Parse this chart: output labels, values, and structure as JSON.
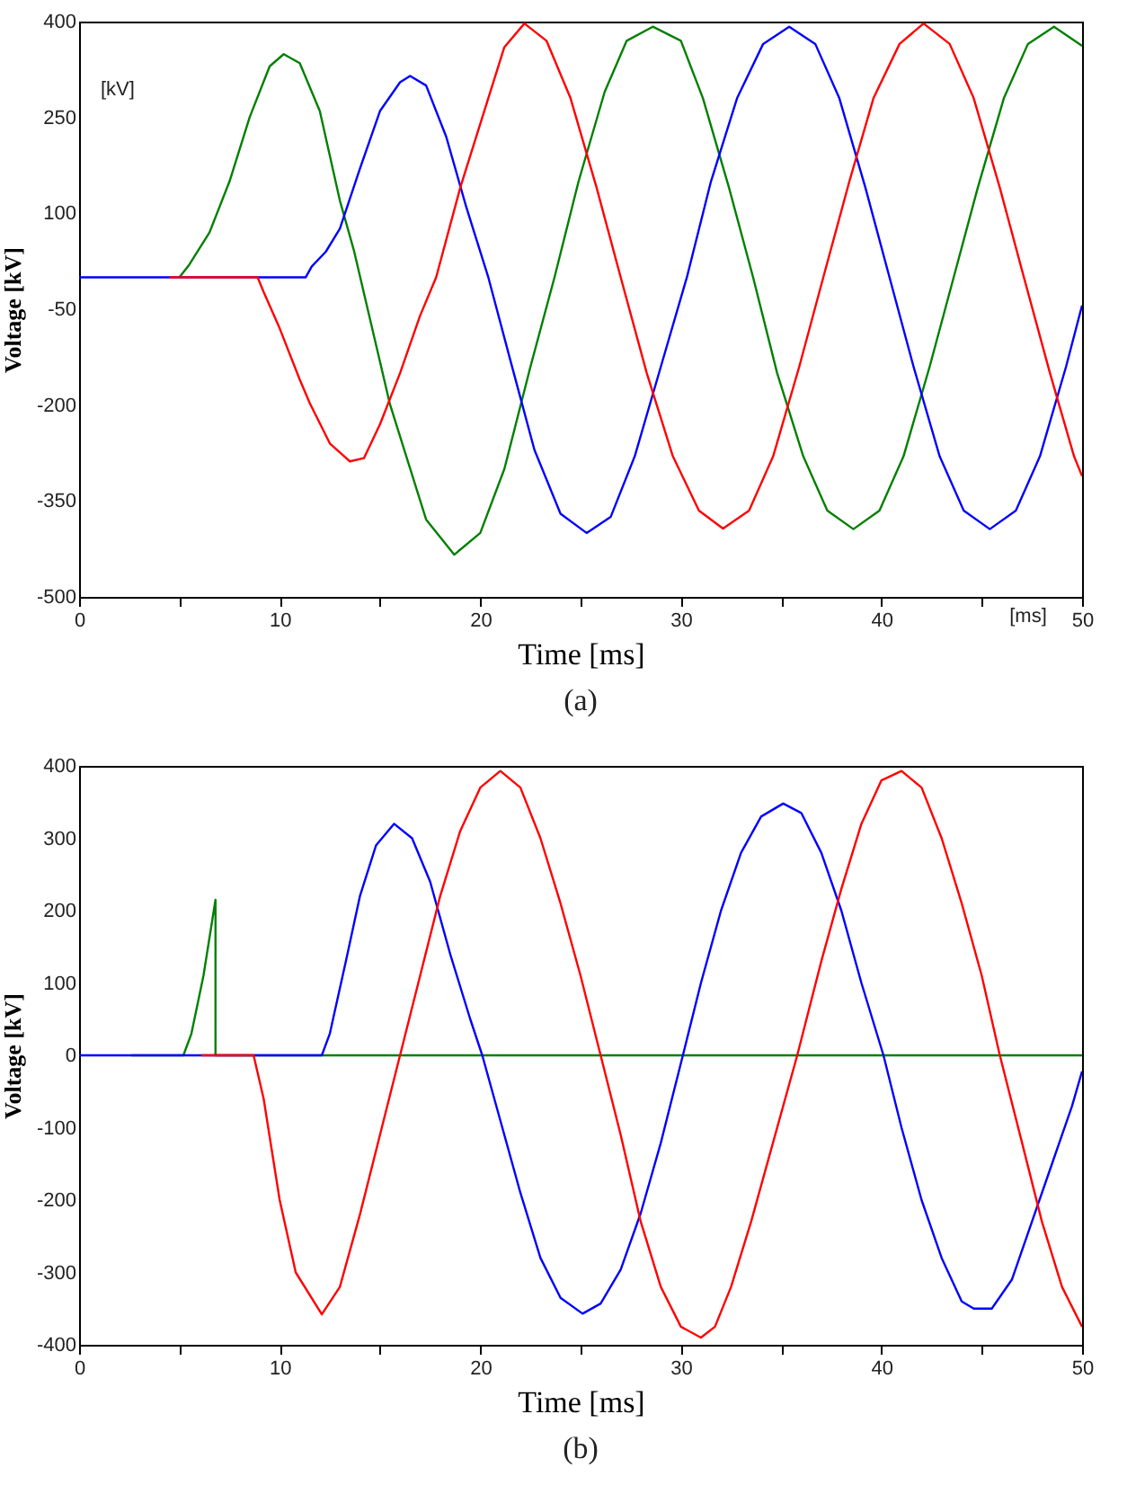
{
  "chart_data": [
    {
      "type": "line",
      "xlabel": "Time [ms]",
      "ylabel": "Voltage [kV]",
      "annotations": [
        "[kV]",
        "[ms]",
        "(a)"
      ],
      "xlim": [
        0,
        50
      ],
      "ylim": [
        -500,
        400
      ],
      "xticks": [
        0,
        {
          "value": 5,
          "label": null
        },
        10,
        {
          "value": 15,
          "label": null
        },
        20,
        {
          "value": 25,
          "label": null
        },
        30,
        {
          "value": 35,
          "label": null
        },
        40,
        {
          "value": 45,
          "label": null
        },
        50
      ],
      "yticks": [
        -500,
        -350,
        -200,
        -50,
        100,
        250,
        400
      ],
      "grid": false,
      "series": [
        {
          "color": "#008000",
          "x": [
            5,
            5.5,
            6.5,
            7.5,
            8.5,
            9.5,
            10.2,
            11,
            12,
            13,
            13.7,
            15.5,
            17.3,
            18.7,
            20,
            21.2,
            22.5,
            23.7,
            24.9,
            26.2,
            27.3,
            28.6,
            30,
            31.1,
            32.4,
            33.6,
            34.8,
            36.1,
            37.3,
            38.6,
            39.9,
            41.1,
            42.4,
            43.6,
            44.8,
            46.1,
            47.3,
            48.6,
            50
          ],
          "values": [
            0,
            20,
            70,
            150,
            250,
            330,
            349,
            335,
            260,
            120,
            42,
            -199,
            -379,
            -434,
            -400,
            -300,
            -140,
            0,
            150,
            290,
            370,
            392,
            370,
            280,
            140,
            0,
            -150,
            -280,
            -365,
            -394,
            -365,
            -280,
            -140,
            0,
            140,
            280,
            365,
            392,
            362
          ]
        },
        {
          "color": "#0000ff",
          "x": [
            0,
            11.3,
            11.6,
            12.3,
            13,
            14,
            15,
            16,
            16.5,
            17.3,
            18.3,
            19.3,
            20.4,
            21.5,
            22.7,
            24,
            25.3,
            26.5,
            27.7,
            29,
            30.3,
            31.5,
            32.8,
            34.1,
            35.4,
            36.7,
            37.9,
            39.2,
            40.4,
            41.6,
            42.9,
            44.1,
            45.4,
            46.7,
            47.9,
            49.2,
            50
          ],
          "values": [
            0,
            0,
            17,
            40,
            76,
            170,
            260,
            305,
            315,
            300,
            220,
            110,
            0,
            -130,
            -270,
            -370,
            -400,
            -375,
            -280,
            -140,
            0,
            150,
            280,
            365,
            392,
            365,
            280,
            140,
            0,
            -140,
            -280,
            -365,
            -394,
            -365,
            -280,
            -140,
            -44
          ]
        },
        {
          "color": "#ff0000",
          "x": [
            4.5,
            8.9,
            9.2,
            10,
            11,
            11.5,
            12.5,
            13.5,
            14.2,
            15,
            16,
            17,
            17.8,
            19,
            20.3,
            21.2,
            22.2,
            23.3,
            24.5,
            25.8,
            27,
            28.3,
            29.6,
            30.9,
            32.1,
            33.4,
            34.6,
            35.9,
            37.1,
            38.4,
            39.6,
            40.9,
            42.1,
            43.4,
            44.6,
            45.9,
            47.1,
            48.4,
            49.6,
            50
          ],
          "values": [
            0,
            0,
            -23,
            -80,
            -160,
            -197,
            -260,
            -288,
            -283,
            -230,
            -150,
            -60,
            0,
            140,
            270,
            360,
            397,
            370,
            280,
            140,
            0,
            -150,
            -280,
            -365,
            -393,
            -365,
            -280,
            -140,
            0,
            150,
            280,
            365,
            397,
            365,
            280,
            140,
            0,
            -150,
            -280,
            -311
          ]
        }
      ]
    },
    {
      "type": "line",
      "xlabel": "Time [ms]",
      "ylabel": "Voltage [kV]",
      "annotations": [
        "(b)"
      ],
      "xlim": [
        0,
        50
      ],
      "ylim": [
        -400,
        400
      ],
      "xticks": [
        0,
        {
          "value": 5,
          "label": null
        },
        10,
        {
          "value": 15,
          "label": null
        },
        20,
        {
          "value": 25,
          "label": null
        },
        30,
        {
          "value": 35,
          "label": null
        },
        40,
        {
          "value": 45,
          "label": null
        },
        50
      ],
      "yticks": [
        -400,
        -300,
        -200,
        -100,
        0,
        100,
        200,
        300,
        400
      ],
      "grid": false,
      "series": [
        {
          "color": "#008000",
          "x": [
            2.6,
            5.2,
            5.6,
            6.2,
            6.8,
            6.8,
            50
          ],
          "values": [
            0,
            0,
            30,
            110,
            215,
            0,
            0
          ]
        },
        {
          "color": "#0000ff",
          "x": [
            0,
            12.1,
            12.5,
            13.3,
            14,
            14.8,
            15.7,
            16.6,
            17.5,
            18.5,
            19.5,
            20.1,
            21,
            22,
            23,
            24,
            25.1,
            26,
            27,
            28,
            29,
            30.1,
            31,
            32,
            33,
            34,
            35.1,
            36,
            37,
            38,
            39,
            40.1,
            41,
            42,
            43,
            44,
            44.6,
            45.5,
            46.5,
            47.5,
            48.5,
            49.5,
            50
          ],
          "values": [
            0,
            0,
            30,
            130,
            220,
            290,
            320,
            300,
            240,
            140,
            50,
            0,
            -90,
            -190,
            -280,
            -335,
            -357,
            -343,
            -296,
            -218,
            -121,
            0,
            100,
            200,
            280,
            330,
            348,
            335,
            280,
            200,
            100,
            0,
            -100,
            -200,
            -280,
            -340,
            -350,
            -350,
            -310,
            -230,
            -150,
            -70,
            -22
          ]
        },
        {
          "color": "#ff0000",
          "x": [
            6.1,
            8.7,
            9.2,
            10,
            10.8,
            12.1,
            13,
            14,
            15,
            16,
            17,
            18,
            19,
            20,
            21,
            22,
            23,
            24,
            25,
            26,
            27,
            28,
            29,
            30,
            31,
            31.7,
            32.5,
            33.5,
            34.5,
            35.8,
            37,
            38,
            39,
            40,
            41,
            42,
            43,
            44,
            45,
            45.9,
            47,
            48,
            49,
            50
          ],
          "values": [
            0,
            0,
            -60,
            -200,
            -300,
            -358,
            -320,
            -220,
            -110,
            0,
            110,
            220,
            310,
            370,
            393,
            370,
            300,
            210,
            110,
            0,
            -110,
            -230,
            -320,
            -375,
            -390,
            -375,
            -320,
            -230,
            -130,
            0,
            130,
            230,
            320,
            380,
            393,
            370,
            300,
            210,
            110,
            0,
            -120,
            -230,
            -320,
            -375
          ]
        }
      ]
    }
  ]
}
